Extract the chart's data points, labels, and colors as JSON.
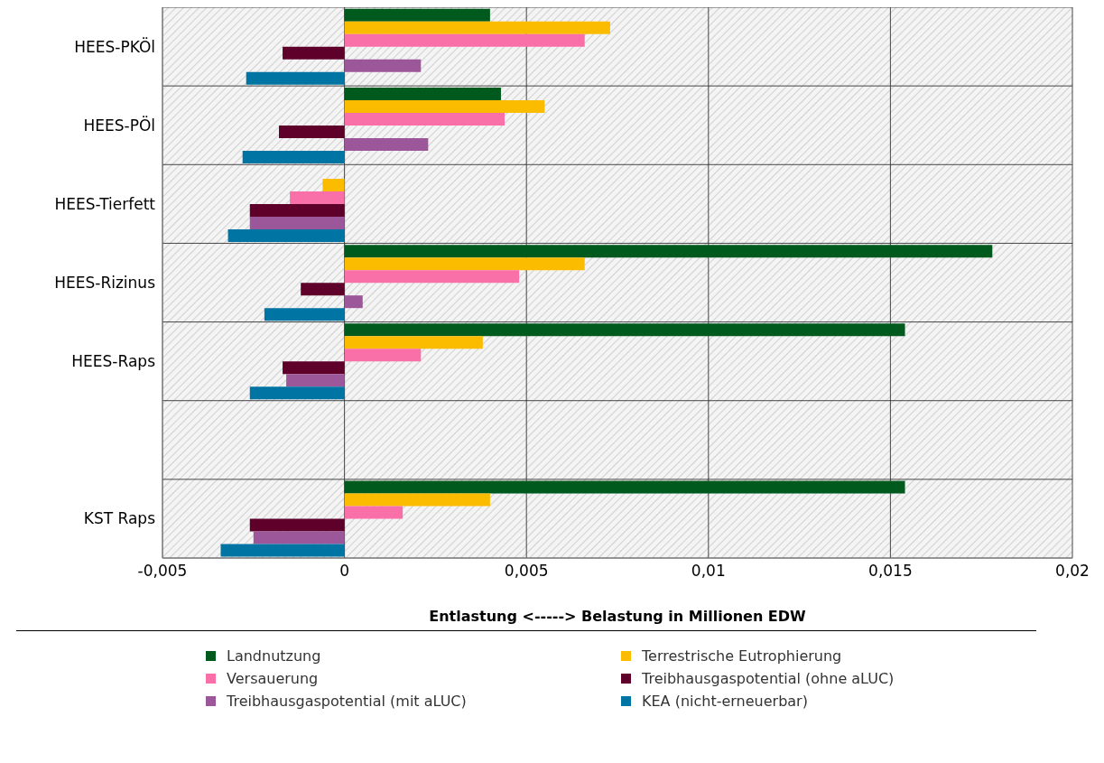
{
  "chart_data": {
    "type": "bar",
    "orientation": "horizontal",
    "xlabel": "Entlastung <-----> Belastung in Millionen EDW",
    "categories": [
      "HEES-PKÖl",
      "HEES-PÖl",
      "HEES-Tierfett",
      "HEES-Rizinus",
      "HEES-Raps",
      null,
      "KST Raps"
    ],
    "series": [
      {
        "name": "Landnutzung",
        "color": "#005a1e",
        "values": [
          0.004,
          0.0043,
          null,
          0.0178,
          0.0154,
          null,
          0.0154
        ]
      },
      {
        "name": "Terrestrische Eutrophierung",
        "color": "#fbbc00",
        "values": [
          0.0073,
          0.0055,
          -0.0006,
          0.0066,
          0.0038,
          null,
          0.004
        ]
      },
      {
        "name": "Versauerung",
        "color": "#f96fa8",
        "values": [
          0.0066,
          0.0044,
          -0.0015,
          0.0048,
          0.0021,
          null,
          0.0016
        ]
      },
      {
        "name": "Treibhausgaspotential (ohne aLUC)",
        "color": "#5e002a",
        "values": [
          -0.0017,
          -0.0018,
          -0.0026,
          -0.0012,
          -0.0017,
          null,
          -0.0026
        ]
      },
      {
        "name": "Treibhausgaspotential (mit aLUC)",
        "color": "#9c579a",
        "values": [
          0.0021,
          0.0023,
          -0.0026,
          0.0005,
          -0.0016,
          null,
          -0.0025
        ]
      },
      {
        "name": "KEA (nicht-erneuerbar)",
        "color": "#0074a3",
        "values": [
          -0.0027,
          -0.0028,
          -0.0032,
          -0.0022,
          -0.0026,
          null,
          -0.0034
        ]
      }
    ],
    "xlim": [
      -0.005,
      0.02
    ],
    "xticks": [
      {
        "value": -0.005,
        "label": "-0,005"
      },
      0,
      {
        "value": 0.005,
        "label": "0,005"
      },
      {
        "value": 0.01,
        "label": "0,01"
      },
      {
        "value": 0.015,
        "label": "0,015"
      },
      {
        "value": 0.02,
        "label": "0,02"
      }
    ],
    "grid": true,
    "legend": "bottom"
  }
}
